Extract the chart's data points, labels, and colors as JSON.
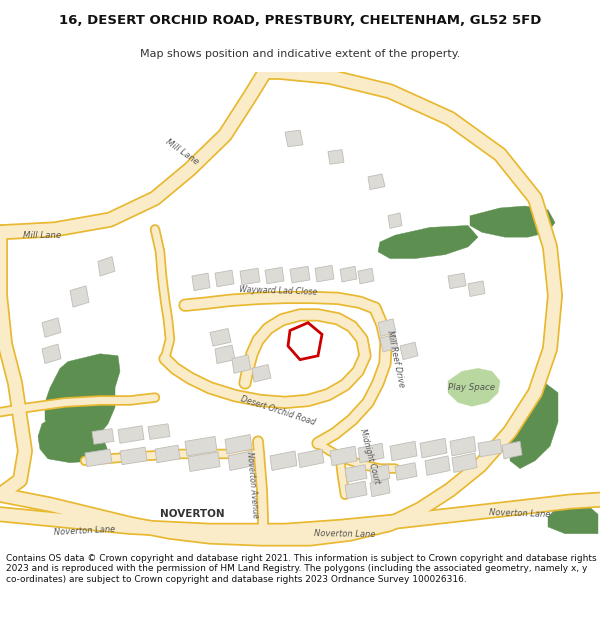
{
  "title_line1": "16, DESERT ORCHID ROAD, PRESTBURY, CHELTENHAM, GL52 5FD",
  "title_line2": "Map shows position and indicative extent of the property.",
  "footer_text": "Contains OS data © Crown copyright and database right 2021. This information is subject to Crown copyright and database rights 2023 and is reproduced with the permission of HM Land Registry. The polygons (including the associated geometry, namely x, y co-ordinates) are subject to Crown copyright and database rights 2023 Ordnance Survey 100026316.",
  "bg_color": "#ffffff",
  "map_bg": "#ffffff",
  "road_fill": "#faecc8",
  "road_edge": "#e8b830",
  "building_fill": "#dddbd6",
  "building_edge": "#c0bdb8",
  "green_fill": "#5d8f50",
  "green_light": "#b8d8a0",
  "highlight_fill": "#ffffff",
  "highlight_edge": "#cc0000",
  "text_color": "#555555"
}
